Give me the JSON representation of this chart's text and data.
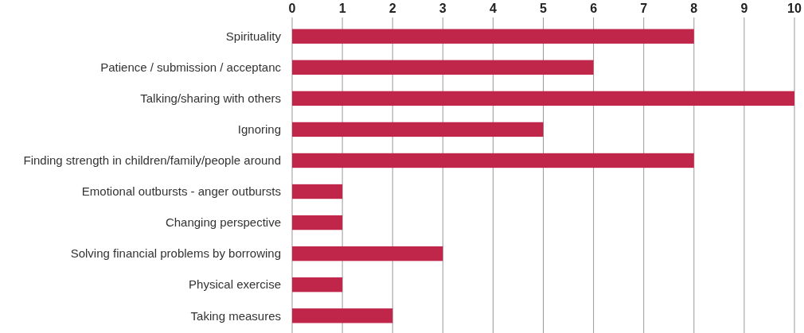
{
  "chart_data": {
    "type": "bar",
    "orientation": "horizontal",
    "categories": [
      "Spirituality",
      "Patience / submission / acceptanc",
      "Talking/sharing with others",
      "Ignoring",
      "Finding strength in children/family/people around",
      "Emotional outbursts - anger outbursts",
      "Changing perspective",
      "Solving financial problems by borrowing",
      "Physical exercise",
      "Taking measures"
    ],
    "values": [
      8,
      6,
      10,
      5,
      8,
      1,
      1,
      3,
      1,
      2
    ],
    "color": "#c0254a",
    "xlim": [
      0,
      10
    ],
    "xticks": [
      0,
      1,
      2,
      3,
      4,
      5,
      6,
      7,
      8,
      9,
      10
    ],
    "grid": "x"
  }
}
